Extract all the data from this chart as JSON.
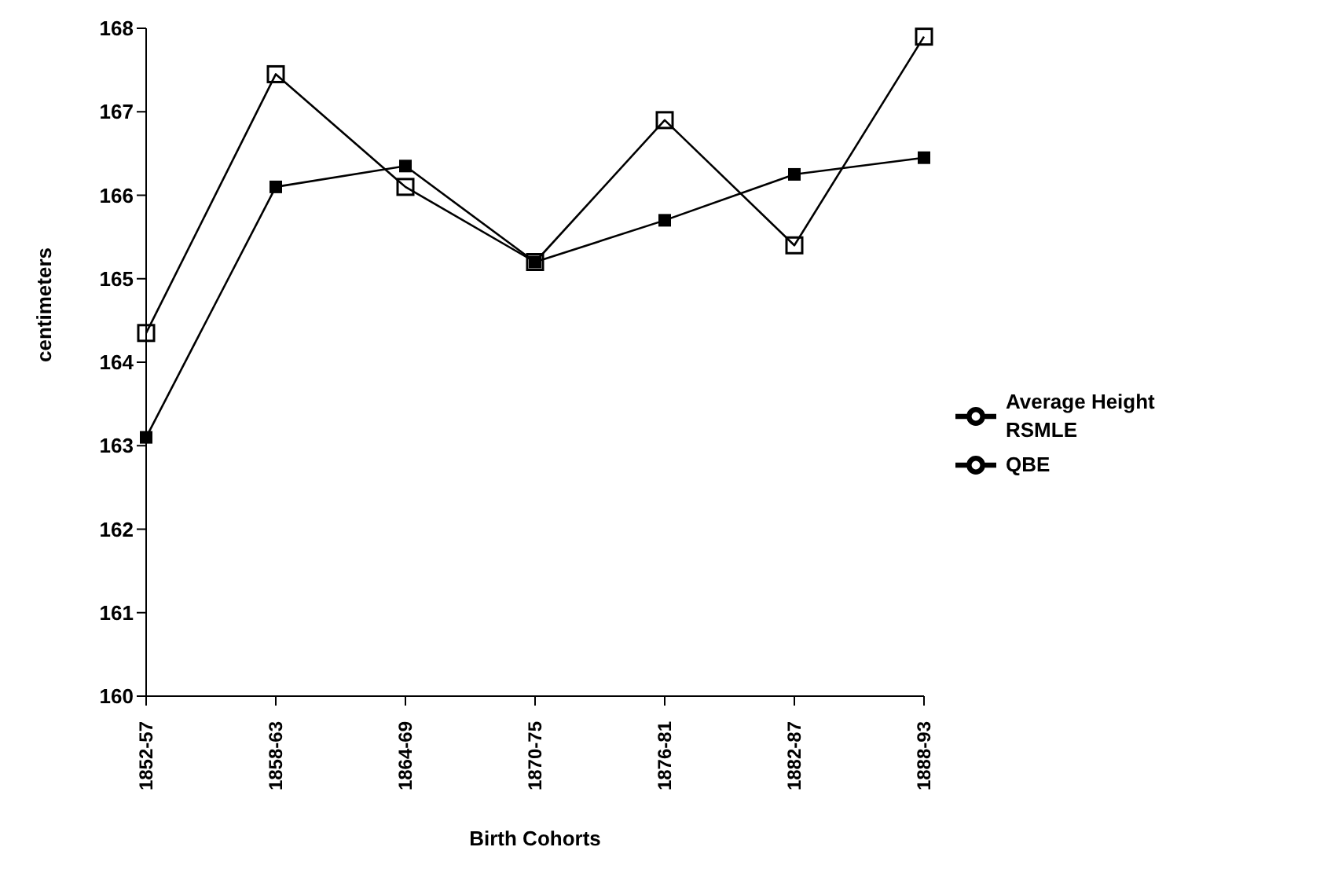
{
  "chart_data": {
    "type": "line",
    "xlabel": "Birth Cohorts",
    "ylabel": "centimeters",
    "categories": [
      "1852-57",
      "1858-63",
      "1864-69",
      "1870-75",
      "1876-81",
      "1882-87",
      "1888-93"
    ],
    "series": [
      {
        "name": "Average Height RSMLE",
        "color": "#000000",
        "values": [
          163.1,
          166.1,
          166.35,
          165.2,
          165.7,
          166.25,
          166.45
        ]
      },
      {
        "name": "QBE",
        "color": "#000000",
        "values": [
          164.35,
          167.45,
          166.1,
          165.2,
          166.9,
          165.4,
          167.9
        ]
      }
    ],
    "ylim": [
      160,
      168
    ],
    "yticks": [
      160,
      161,
      162,
      163,
      164,
      165,
      166,
      167,
      168
    ],
    "grid": false,
    "legend": "right",
    "marker": "square"
  }
}
